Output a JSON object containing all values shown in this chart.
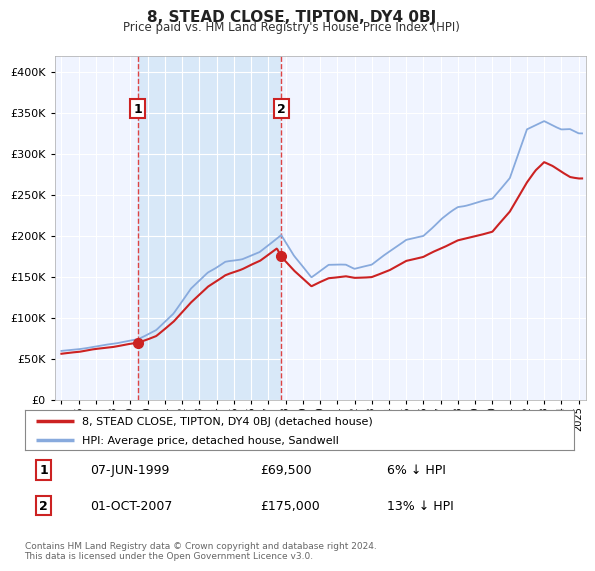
{
  "title": "8, STEAD CLOSE, TIPTON, DY4 0BJ",
  "subtitle": "Price paid vs. HM Land Registry's House Price Index (HPI)",
  "legend_line1": "8, STEAD CLOSE, TIPTON, DY4 0BJ (detached house)",
  "legend_line2": "HPI: Average price, detached house, Sandwell",
  "sale1_date": "07-JUN-1999",
  "sale1_price": "£69,500",
  "sale1_hpi": "6% ↓ HPI",
  "sale1_year": 1999.44,
  "sale1_value": 69500,
  "sale2_date": "01-OCT-2007",
  "sale2_price": "£175,000",
  "sale2_hpi": "13% ↓ HPI",
  "sale2_year": 2007.75,
  "sale2_value": 175000,
  "ylim": [
    0,
    420000
  ],
  "xlim_start": 1994.6,
  "xlim_end": 2025.4,
  "yticks": [
    0,
    50000,
    100000,
    150000,
    200000,
    250000,
    300000,
    350000,
    400000
  ],
  "ytick_labels": [
    "£0",
    "£50K",
    "£100K",
    "£150K",
    "£200K",
    "£250K",
    "£300K",
    "£350K",
    "£400K"
  ],
  "line_color_red": "#cc2222",
  "line_color_blue": "#88aadd",
  "background_color": "#ffffff",
  "plot_bg": "#f0f4ff",
  "shade_color": "#d8e8f8",
  "grid_color": "#ffffff",
  "dashed_color": "#dd4444",
  "box_edge_color": "#cc2222",
  "footnote": "Contains HM Land Registry data © Crown copyright and database right 2024.\nThis data is licensed under the Open Government Licence v3.0."
}
